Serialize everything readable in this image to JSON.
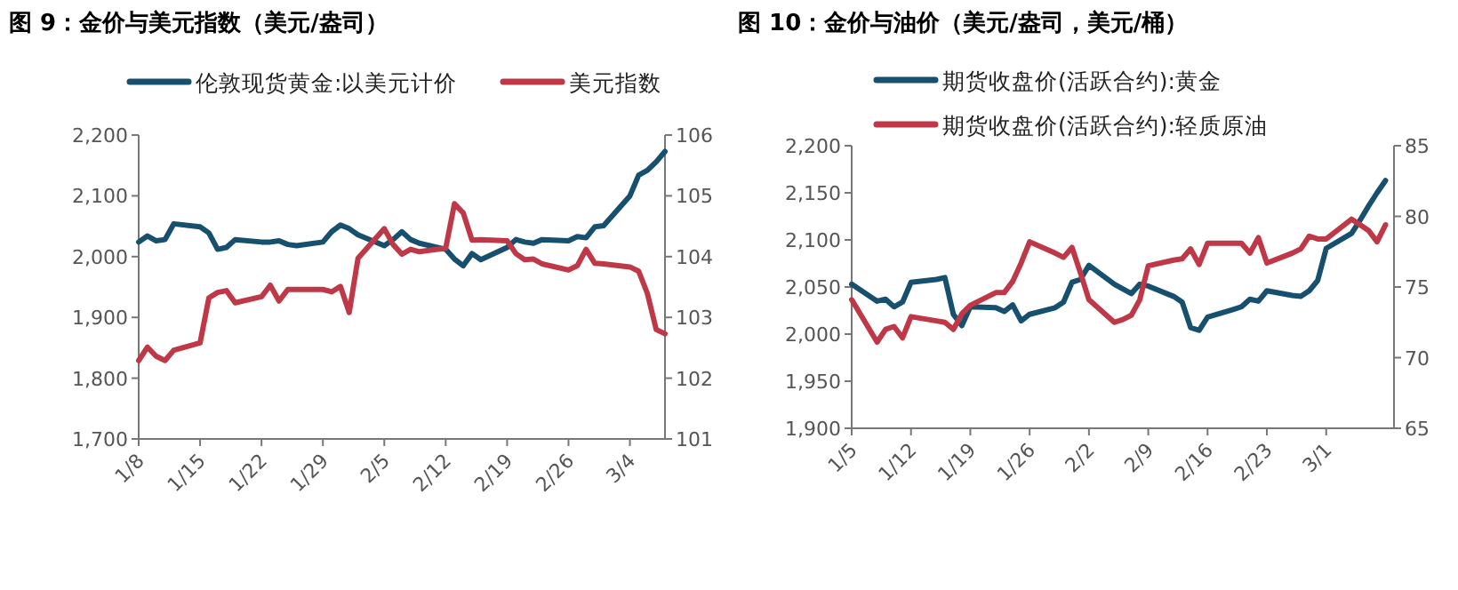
{
  "chart_data": [
    {
      "type": "line",
      "title": "图 9：金价与美元指数（美元/盎司）",
      "legend": "top",
      "x": [
        "--01-08",
        "--01-09",
        "--01-10",
        "--01-11",
        "--01-12",
        "--01-15",
        "--01-16",
        "--01-17",
        "--01-18",
        "--01-19",
        "--01-22",
        "--01-23",
        "--01-24",
        "--01-25",
        "--01-26",
        "--01-29",
        "--01-30",
        "--01-31",
        "--02-01",
        "--02-02",
        "--02-05",
        "--02-06",
        "--02-07",
        "--02-08",
        "--02-09",
        "--02-12",
        "--02-13",
        "--02-14",
        "--02-15",
        "--02-16",
        "--02-19",
        "--02-20",
        "--02-21",
        "--02-22",
        "--02-23",
        "--02-26",
        "--02-27",
        "--02-28",
        "--02-29",
        "--03-01",
        "--03-04",
        "--03-05",
        "--03-06",
        "--03-07",
        "--03-08"
      ],
      "xlim": [
        "--01-08",
        "--03-08"
      ],
      "xticks": [
        {
          "value": "--01-08",
          "label": "1/8"
        },
        {
          "value": "--01-15",
          "label": "1/15"
        },
        {
          "value": "--01-22",
          "label": "1/22"
        },
        {
          "value": "--01-29",
          "label": "1/29"
        },
        {
          "value": "--02-05",
          "label": "2/5"
        },
        {
          "value": "--02-12",
          "label": "2/12"
        },
        {
          "value": "--02-19",
          "label": "2/19"
        },
        {
          "value": "--02-26",
          "label": "2/26"
        },
        {
          "value": "--03-04",
          "label": "3/4"
        }
      ],
      "ylim": [
        1700,
        2200
      ],
      "yticks": [
        {
          "value": 1700,
          "label": "1,700"
        },
        {
          "value": 1800,
          "label": "1,800"
        },
        {
          "value": 1900,
          "label": "1,900"
        },
        {
          "value": 2000,
          "label": "2,000"
        },
        {
          "value": 2100,
          "label": "2,100"
        },
        {
          "value": 2200,
          "label": "2,200"
        }
      ],
      "y2lim": [
        101,
        106
      ],
      "y2ticks": [
        101,
        102,
        103,
        104,
        105,
        106
      ],
      "series": [
        {
          "name": "伦敦现货黄金:以美元计价",
          "color": "#17506e",
          "values": [
            2024,
            2034,
            2026,
            2028,
            2054,
            2049,
            2039,
            2012,
            2015,
            2028,
            2024,
            2024,
            2026,
            2020,
            2018,
            2024,
            2041,
            2052,
            2046,
            2036,
            2018,
            2028,
            2041,
            2028,
            2022,
            2012,
            1996,
            1985,
            2005,
            1995,
            2015,
            2028,
            2024,
            2022,
            2028,
            2026,
            2033,
            2031,
            2049,
            2051,
            2100,
            2134,
            2142,
            2156,
            2173
          ]
        },
        {
          "name": "美元指数",
          "color": "#be3848",
          "axis": "y2",
          "values": [
            102.29,
            102.51,
            102.36,
            102.29,
            102.46,
            102.58,
            103.32,
            103.41,
            103.44,
            103.24,
            103.34,
            103.53,
            103.27,
            103.46,
            103.46,
            103.46,
            103.42,
            103.51,
            103.08,
            103.97,
            104.46,
            104.2,
            104.04,
            104.12,
            104.08,
            104.14,
            104.87,
            104.72,
            104.27,
            104.28,
            104.26,
            104.05,
            103.95,
            103.96,
            103.88,
            103.78,
            103.85,
            104.12,
            103.89,
            103.88,
            103.83,
            103.76,
            103.39,
            102.8,
            102.73
          ]
        }
      ]
    },
    {
      "type": "line",
      "title": "图 10：金价与油价（美元/盎司，美元/桶）",
      "legend": "top",
      "x": [
        "--01-05",
        "--01-08",
        "--01-09",
        "--01-10",
        "--01-11",
        "--01-12",
        "--01-15",
        "--01-16",
        "--01-17",
        "--01-18",
        "--01-19",
        "--01-22",
        "--01-23",
        "--01-24",
        "--01-25",
        "--01-26",
        "--01-29",
        "--01-30",
        "--01-31",
        "--02-01",
        "--02-02",
        "--02-05",
        "--02-06",
        "--02-07",
        "--02-08",
        "--02-09",
        "--02-12",
        "--02-13",
        "--02-14",
        "--02-15",
        "--02-16",
        "--02-19",
        "--02-20",
        "--02-21",
        "--02-22",
        "--02-23",
        "--02-26",
        "--02-27",
        "--02-28",
        "--02-29",
        "--03-01",
        "--03-04",
        "--03-05",
        "--03-06",
        "--03-07",
        "--03-08"
      ],
      "xlim": [
        "--01-05",
        "--03-09"
      ],
      "xticks": [
        {
          "value": "--01-05",
          "label": "1/5"
        },
        {
          "value": "--01-12",
          "label": "1/12"
        },
        {
          "value": "--01-19",
          "label": "1/19"
        },
        {
          "value": "--01-26",
          "label": "1/26"
        },
        {
          "value": "--02-02",
          "label": "2/2"
        },
        {
          "value": "--02-09",
          "label": "2/9"
        },
        {
          "value": "--02-16",
          "label": "2/16"
        },
        {
          "value": "--02-23",
          "label": "2/23"
        },
        {
          "value": "--03-01",
          "label": "3/1"
        }
      ],
      "ylim": [
        1900,
        2200
      ],
      "yticks": [
        {
          "value": 1900,
          "label": "1,900"
        },
        {
          "value": 1950,
          "label": "1,950"
        },
        {
          "value": 2000,
          "label": "2,000"
        },
        {
          "value": 2050,
          "label": "2,050"
        },
        {
          "value": 2100,
          "label": "2,100"
        },
        {
          "value": 2150,
          "label": "2,150"
        },
        {
          "value": 2200,
          "label": "2,200"
        }
      ],
      "y2lim": [
        65,
        85
      ],
      "y2ticks": [
        65,
        70,
        75,
        80,
        85
      ],
      "series": [
        {
          "name": "期货收盘价(活跃合约):黄金",
          "color": "#17506e",
          "values": [
            2053,
            2035,
            2037,
            2029,
            2034,
            2055,
            2058,
            2060,
            2021,
            2009,
            2029,
            2028,
            2024,
            2031,
            2014,
            2021,
            2028,
            2034,
            2055,
            2058,
            2073,
            2053,
            2048,
            2043,
            2053,
            2051,
            2040,
            2034,
            2007,
            2004,
            2018,
            2026,
            2029,
            2037,
            2035,
            2046,
            2041,
            2040,
            2046,
            2057,
            2091,
            2107,
            2121,
            2136,
            2150,
            2163
          ]
        },
        {
          "name": "期货收盘价(活跃合约):轻质原油",
          "color": "#be3848",
          "axis": "y2",
          "values": [
            74.1,
            71.1,
            72.0,
            72.2,
            71.4,
            72.9,
            72.6,
            72.5,
            72.0,
            73.1,
            73.7,
            74.6,
            74.6,
            75.4,
            76.7,
            78.2,
            77.4,
            77.1,
            77.8,
            76.0,
            74.1,
            72.5,
            72.7,
            73.0,
            74.1,
            76.5,
            76.9,
            77.0,
            77.7,
            76.6,
            78.1,
            78.1,
            78.1,
            77.4,
            78.5,
            76.7,
            77.4,
            77.7,
            78.6,
            78.4,
            78.4,
            79.8,
            79.4,
            79.0,
            78.2,
            79.4
          ]
        }
      ]
    }
  ]
}
